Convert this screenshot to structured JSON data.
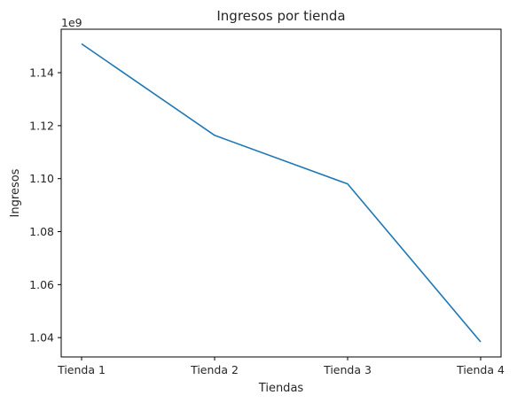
{
  "chart_data": {
    "type": "line",
    "title": "Ingresos por tienda",
    "xlabel": "Tiendas",
    "ylabel": "Ingresos",
    "categories": [
      "Tienda 1",
      "Tienda 2",
      "Tienda 3",
      "Tienda 4"
    ],
    "series": [
      {
        "values": [
          1150880400,
          1116343500,
          1098019600,
          1038375700
        ],
        "color": "#1f77b4"
      }
    ],
    "y_scale_label": "1e9",
    "ylim": [
      1032700000.0,
      1156400000.0
    ],
    "yticks": [
      1.04,
      1.06,
      1.08,
      1.1,
      1.12,
      1.14
    ],
    "ytick_labels": [
      "1.04",
      "1.06",
      "1.08",
      "1.10",
      "1.12",
      "1.14"
    ],
    "grid": false,
    "legend": "none"
  }
}
